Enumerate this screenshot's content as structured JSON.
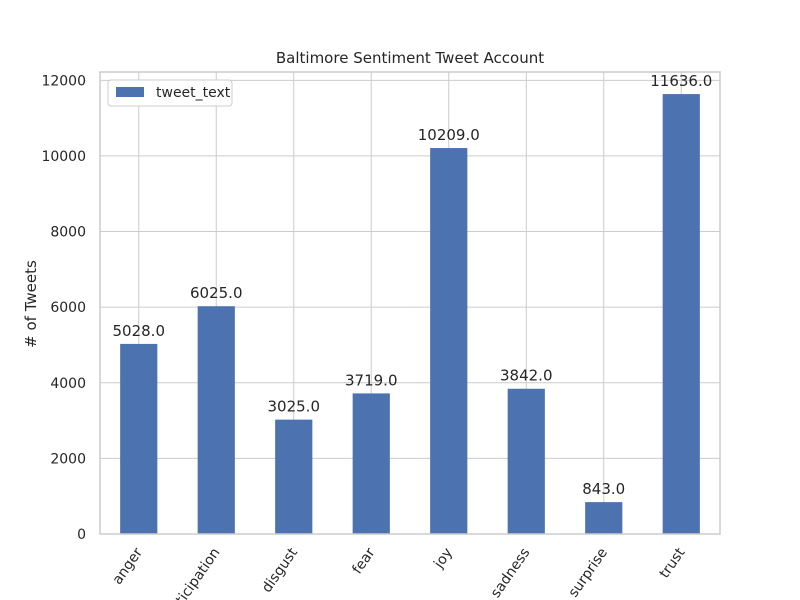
{
  "chart_data": {
    "type": "bar",
    "title": "Baltimore Sentiment Tweet Account",
    "xlabel": "",
    "ylabel": "# of Tweets",
    "categories": [
      "anger",
      "anticipation",
      "disgust",
      "fear",
      "joy",
      "sadness",
      "surprise",
      "trust"
    ],
    "series": [
      {
        "name": "tweet_text",
        "values": [
          5028.0,
          6025.0,
          3025.0,
          3719.0,
          10209.0,
          3842.0,
          843.0,
          11636.0
        ],
        "value_labels": [
          "5028.0",
          "6025.0",
          "3025.0",
          "3719.0",
          "10209.0",
          "3842.0",
          "843.0",
          "11636.0"
        ]
      }
    ],
    "ylim": [
      0,
      12000
    ],
    "yticks": [
      0,
      2000,
      4000,
      6000,
      8000,
      10000,
      12000
    ],
    "ytick_labels": [
      "0",
      "2000",
      "4000",
      "6000",
      "8000",
      "10000",
      "12000"
    ],
    "grid": true,
    "legend_position": "top-left",
    "colors": {
      "bar": "#4c72b0",
      "grid": "#cccccc",
      "frame": "#cccccc",
      "text": "#262626"
    }
  }
}
